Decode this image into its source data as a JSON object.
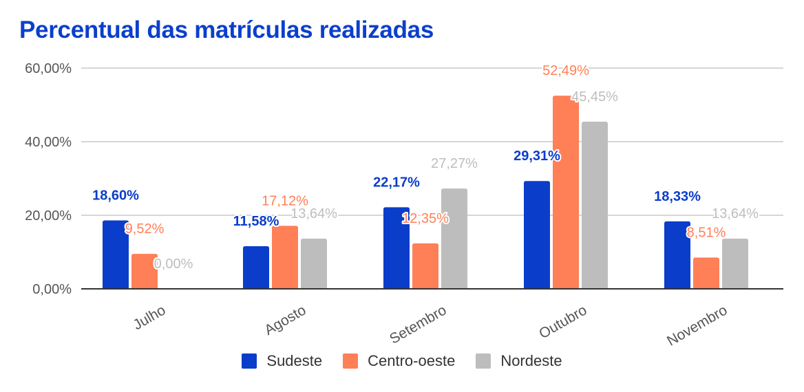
{
  "chart_data": {
    "type": "bar",
    "title": "Percentual das matrículas realizadas",
    "categories": [
      "Julho",
      "Agosto",
      "Setembro",
      "Outubro",
      "Novembro"
    ],
    "series": [
      {
        "name": "Sudeste",
        "color": "#0a3dca",
        "values": [
          18.6,
          11.58,
          22.17,
          29.31,
          18.33
        ],
        "labels": [
          "18,60%",
          "11,58%",
          "22,17%",
          "29,31%",
          "18,33%"
        ]
      },
      {
        "name": "Centro-oeste",
        "color": "#ff7f57",
        "values": [
          9.52,
          17.12,
          12.35,
          52.49,
          8.51
        ],
        "labels": [
          "9,52%",
          "17,12%",
          "12,35%",
          "52,49%",
          "8,51%"
        ]
      },
      {
        "name": "Nordeste",
        "color": "#bdbdbd",
        "values": [
          0.0,
          13.64,
          27.27,
          45.45,
          13.64
        ],
        "labels": [
          "0,00%",
          "13,64%",
          "27,27%",
          "45,45%",
          "13,64%"
        ]
      }
    ],
    "yticks": [
      "0,00%",
      "20,00%",
      "40,00%",
      "60,00%"
    ],
    "ylim": [
      0,
      60
    ],
    "grid": true,
    "legend_position": "bottom"
  }
}
